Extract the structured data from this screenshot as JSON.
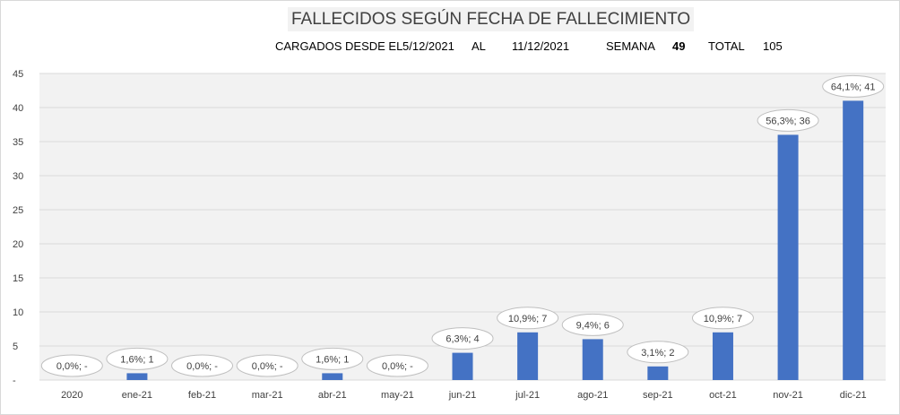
{
  "header": {
    "title": "FALLECIDOS SEGÚN FECHA DE FALLECIMIENTO",
    "loaded_label": "CARGADOS DESDE EL",
    "date_from": "5/12/2021",
    "al_label": "AL",
    "date_to": "11/12/2021",
    "week_label": "SEMANA",
    "week_value": "49",
    "total_label": "TOTAL",
    "total_value": "105"
  },
  "colors": {
    "bar": "#4472c4",
    "plot_background": "#f2f2f2",
    "gridline": "#d9d9d9"
  },
  "chart_data": {
    "type": "bar",
    "categories": [
      "2020",
      "ene-21",
      "feb-21",
      "mar-21",
      "abr-21",
      "may-21",
      "jun-21",
      "jul-21",
      "ago-21",
      "sep-21",
      "oct-21",
      "nov-21",
      "dic-21"
    ],
    "values": [
      0,
      1,
      0,
      0,
      1,
      0,
      4,
      7,
      6,
      2,
      7,
      36,
      41
    ],
    "data_labels": [
      "0,0%; -",
      "1,6%; 1",
      "0,0%; -",
      "0,0%; -",
      "1,6%; 1",
      "0,0%; -",
      "6,3%; 4",
      "10,9%; 7",
      "9,4%; 6",
      "3,1%; 2",
      "10,9%; 7",
      "56,3%; 36",
      "64,1%; 41"
    ],
    "ylim": [
      0,
      45
    ],
    "yticks": [
      0,
      5,
      10,
      15,
      20,
      25,
      30,
      35,
      40,
      45
    ],
    "ytick_labels": [
      "-",
      "5",
      "10",
      "15",
      "20",
      "25",
      "30",
      "35",
      "40",
      "45"
    ],
    "grid": true,
    "legend": "none"
  }
}
